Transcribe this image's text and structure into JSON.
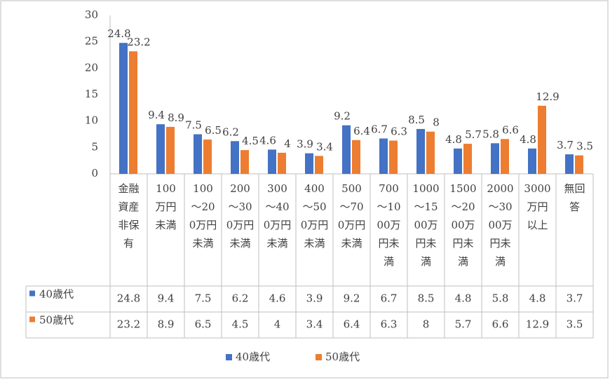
{
  "chart_data": {
    "type": "bar",
    "categories": [
      "金融資産非保有",
      "100万円未満",
      "100～200万円未満",
      "200～300万円未満",
      "300～400万円未満",
      "400～500万円未満",
      "500～700万円未満",
      "700～1000万円未満",
      "1000～1500万円未満",
      "1500～2000万円未満",
      "2000～3000万円未満",
      "3000万円以上",
      "無回答"
    ],
    "series": [
      {
        "name": "40歳代",
        "color": "#4472c4",
        "values": [
          24.8,
          9.4,
          7.5,
          6.2,
          4.6,
          3.9,
          9.2,
          6.7,
          8.5,
          4.8,
          5.8,
          4.8,
          3.7
        ]
      },
      {
        "name": "50歳代",
        "color": "#ed7d31",
        "values": [
          23.2,
          8.9,
          6.5,
          4.5,
          4,
          3.4,
          6.4,
          6.3,
          8,
          5.7,
          6.6,
          12.9,
          3.5
        ]
      }
    ],
    "ylim": [
      0,
      30
    ],
    "yticks": [
      0,
      5,
      10,
      15,
      20,
      25,
      30
    ],
    "grid": false,
    "legend": "bottom",
    "data_table": true
  }
}
